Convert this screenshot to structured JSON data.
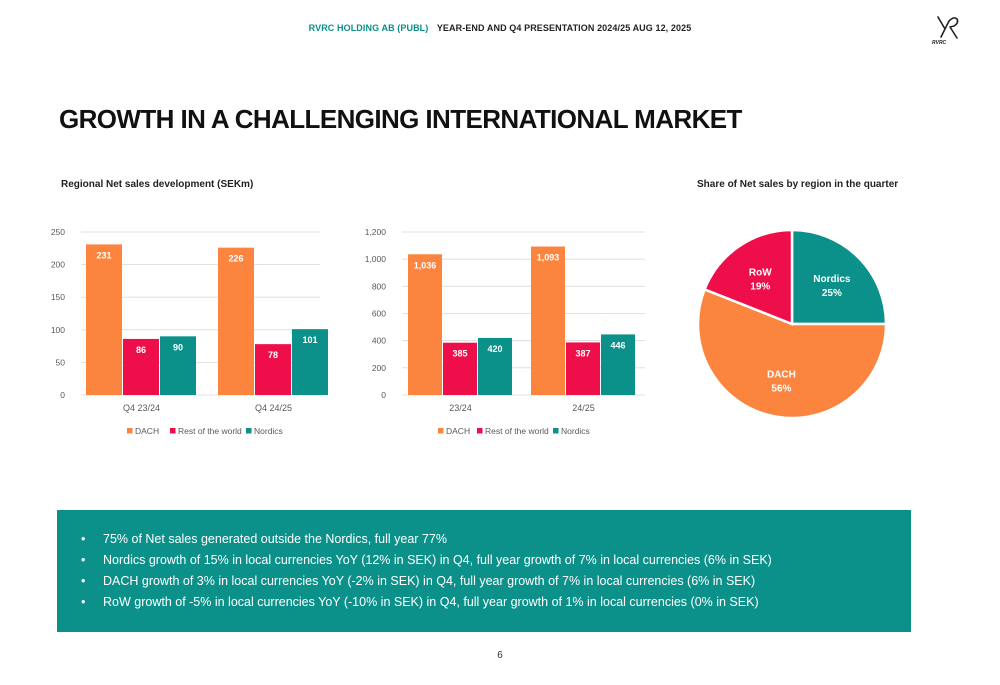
{
  "header": {
    "company": "RVRC HOLDING AB (PUBL)",
    "presentation": "YEAR-END AND Q4 PRESENTATION 2024/25  AUG 12, 2025"
  },
  "logo": {
    "text": "RVRC"
  },
  "title": "GROWTH IN A CHALLENGING INTERNATIONAL MARKET",
  "left_subtitle": "Regional Net sales development (SEKm)",
  "right_subtitle": "Share of Net sales by region in the quarter",
  "colors": {
    "dach": "#fb843f",
    "row": "#ee0f4a",
    "nordics": "#0b918a",
    "box": "#0c918a",
    "accent": "#0a8f86"
  },
  "chart_data": [
    {
      "type": "bar",
      "categories": [
        "Q4 23/24",
        "Q4 24/25"
      ],
      "series": [
        {
          "name": "DACH",
          "values": [
            231,
            226
          ]
        },
        {
          "name": "Rest of the world",
          "values": [
            86,
            78
          ]
        },
        {
          "name": "Nordics",
          "values": [
            90,
            101
          ]
        }
      ],
      "title": "",
      "ylim": [
        0,
        250
      ],
      "yticks": [
        "0",
        "50",
        "100",
        "150",
        "200",
        "250"
      ],
      "yticks_values": [
        0,
        50,
        100,
        150,
        200,
        250
      ],
      "data_labels": [
        [
          "231",
          "226"
        ],
        [
          "86",
          "78"
        ],
        [
          "90",
          "101"
        ]
      ],
      "grid": true,
      "legend": "bottom"
    },
    {
      "type": "bar",
      "categories": [
        "23/24",
        "24/25"
      ],
      "series": [
        {
          "name": "DACH",
          "values": [
            1036,
            1093
          ]
        },
        {
          "name": "Rest of the world",
          "values": [
            385,
            387
          ]
        },
        {
          "name": "Nordics",
          "values": [
            420,
            446
          ]
        }
      ],
      "title": "",
      "ylim": [
        0,
        1200
      ],
      "yticks": [
        "0",
        "200",
        "400",
        "600",
        "800",
        "1,000",
        "1,200"
      ],
      "yticks_values": [
        0,
        200,
        400,
        600,
        800,
        1000,
        1200
      ],
      "data_labels": [
        [
          "1,036",
          "1,093"
        ],
        [
          "385",
          "387"
        ],
        [
          "420",
          "446"
        ]
      ],
      "grid": true,
      "legend": "bottom"
    },
    {
      "type": "pie",
      "slices": [
        {
          "name": "Nordics",
          "value": 25,
          "label": "25%"
        },
        {
          "name": "DACH",
          "value": 56,
          "label": "56%"
        },
        {
          "name": "RoW",
          "value": 19,
          "label": "19%"
        }
      ],
      "title": "Share of Net sales by region in the quarter"
    }
  ],
  "bullets": [
    "75% of Net sales generated outside the Nordics, full year 77%",
    "Nordics growth of 15% in local currencies YoY (12% in SEK) in Q4, full year growth of 7% in local currencies (6% in SEK)",
    "DACH growth of 3% in local currencies YoY (-2% in SEK) in Q4, full year growth of 7% in local currencies (6% in SEK)",
    "RoW growth of -5% in local currencies YoY (-10% in SEK) in Q4, full year growth of 1% in local currencies (0% in SEK)"
  ],
  "bullet_symbol": "•",
  "page_number": "6"
}
